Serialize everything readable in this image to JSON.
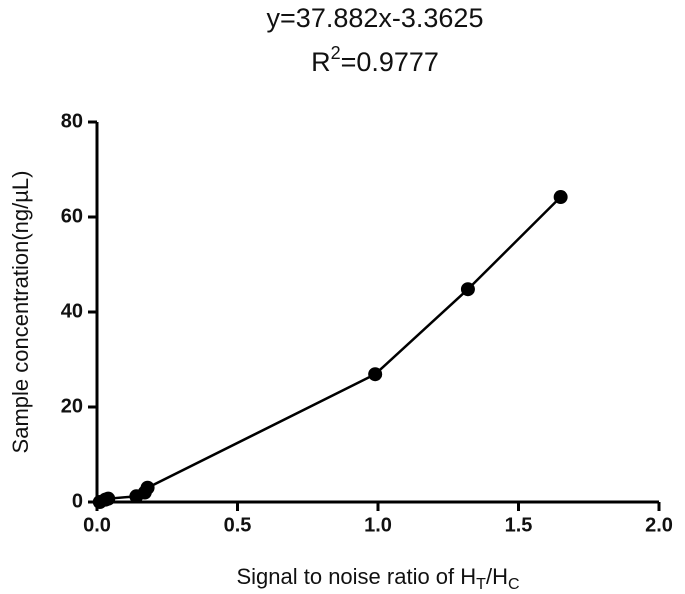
{
  "chart_data": {
    "type": "line",
    "title": "y=37.882x-3.3625",
    "subtitle_parts": [
      "R",
      "2",
      "=0.9777"
    ],
    "x_label_parts": [
      "Signal to noise ratio of H",
      "T",
      "/H",
      "C"
    ],
    "y_label": "Sample concentration(ng/µL)",
    "x": [
      0.01,
      0.03,
      0.04,
      0.14,
      0.17,
      0.18,
      0.99,
      1.32,
      1.65
    ],
    "series": [
      {
        "color": "#000000",
        "values": [
          0,
          0.5,
          0.7,
          1.2,
          2.0,
          3.0,
          26.9,
          44.8,
          64.2
        ]
      }
    ],
    "xlim": [
      0,
      2
    ],
    "xticks": [
      {
        "value": 0,
        "label": "0.0"
      },
      0.5,
      {
        "value": 1,
        "label": "1.0"
      },
      1.5,
      {
        "value": 2,
        "label": "2.0"
      }
    ],
    "ylim": [
      0,
      80
    ],
    "yticks": [
      0,
      20,
      40,
      60,
      80
    ],
    "grid": false
  }
}
